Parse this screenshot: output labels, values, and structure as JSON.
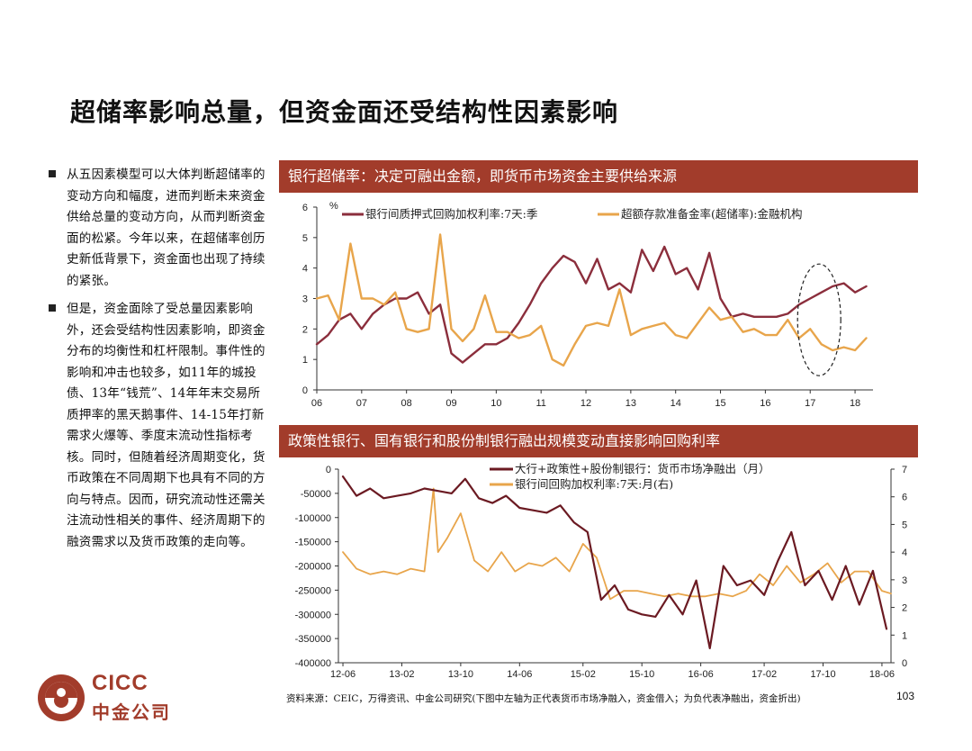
{
  "title": "超储率影响总量，但资金面还受结构性因素影响",
  "bullets": [
    "从五因素模型可以大体判断超储率的变动方向和幅度，进而判断未来资金供给总量的变动方向，从而判断资金面的松紧。今年以来，在超储率创历史新低背景下，资金面也出现了持续的紧张。",
    "但是，资金面除了受总量因素影响外，还会受结构性因素影响，即资金分布的均衡性和杠杆限制。事件性的影响和冲击也较多，如11年的城投债、13年“钱荒”、14年年末交易所质押率的黑天鹅事件、14-15年打新需求火爆等、季度末流动性指标考核。同时，但随着经济周期变化，货币政策在不同周期下也具有不同的方向与特点。因而，研究流动性还需关注流动性相关的事件、经济周期下的融资需求以及货币政策的走向等。"
  ],
  "banner1": "银行超储率：决定可融出金额，即货币市场资金主要供给来源",
  "banner2": "政策性银行、国有银行和股份制银行融出规模变动直接影响回购利率",
  "source": "资料来源：CEIC，万得资讯、中金公司研究(下图中左轴为正代表货币市场净融入，资金借入；为负代表净融出，资金折出)",
  "page_number": "103",
  "logo": {
    "en": "CICC",
    "cn": "中金公司"
  },
  "colors": {
    "brand": "#a23c2b",
    "dark_red": "#6b1a22",
    "orange": "#e8a54b"
  },
  "chart_data": [
    {
      "type": "line",
      "unit_label": "%",
      "ylim": [
        0,
        6
      ],
      "yticks": [
        0,
        1,
        2,
        3,
        4,
        5,
        6
      ],
      "xlim": [
        2006.0,
        2018.4
      ],
      "xticks": [
        "06",
        "07",
        "08",
        "09",
        "10",
        "11",
        "12",
        "13",
        "14",
        "15",
        "16",
        "17",
        "18"
      ],
      "annotation": "dashed-ellipse around 2017-2018",
      "series": [
        {
          "name": "银行间质押式回购加权利率:7天:季",
          "color": "#8b2e3c",
          "x": [
            2006.0,
            2006.25,
            2006.5,
            2006.75,
            2007.0,
            2007.25,
            2007.5,
            2007.75,
            2008.0,
            2008.25,
            2008.5,
            2008.75,
            2009.0,
            2009.25,
            2009.5,
            2009.75,
            2010.0,
            2010.25,
            2010.5,
            2010.75,
            2011.0,
            2011.25,
            2011.5,
            2011.75,
            2012.0,
            2012.25,
            2012.5,
            2012.75,
            2013.0,
            2013.25,
            2013.5,
            2013.75,
            2014.0,
            2014.25,
            2014.5,
            2014.75,
            2015.0,
            2015.25,
            2015.5,
            2015.75,
            2016.0,
            2016.25,
            2016.5,
            2016.75,
            2017.0,
            2017.25,
            2017.5,
            2017.75,
            2018.0,
            2018.25
          ],
          "values": [
            1.5,
            1.8,
            2.3,
            2.5,
            2.0,
            2.5,
            2.8,
            3.0,
            3.0,
            3.2,
            2.5,
            2.8,
            1.2,
            0.9,
            1.2,
            1.5,
            1.5,
            1.7,
            2.2,
            2.8,
            3.5,
            4.0,
            4.4,
            4.2,
            3.5,
            4.3,
            3.3,
            3.5,
            3.2,
            4.6,
            3.9,
            4.7,
            3.8,
            4.0,
            3.3,
            4.5,
            3.0,
            2.4,
            2.5,
            2.4,
            2.4,
            2.4,
            2.5,
            2.8,
            3.0,
            3.2,
            3.4,
            3.5,
            3.2,
            3.4
          ]
        },
        {
          "name": "超额存款准备金率(超储率):金融机构",
          "color": "#e8a54b",
          "x": [
            2006.0,
            2006.25,
            2006.5,
            2006.75,
            2007.0,
            2007.25,
            2007.5,
            2007.75,
            2008.0,
            2008.25,
            2008.5,
            2008.75,
            2009.0,
            2009.25,
            2009.5,
            2009.75,
            2010.0,
            2010.25,
            2010.5,
            2010.75,
            2011.0,
            2011.25,
            2011.5,
            2011.75,
            2012.0,
            2012.25,
            2012.5,
            2012.75,
            2013.0,
            2013.25,
            2013.5,
            2013.75,
            2014.0,
            2014.25,
            2014.5,
            2014.75,
            2015.0,
            2015.25,
            2015.5,
            2015.75,
            2016.0,
            2016.25,
            2016.5,
            2016.75,
            2017.0,
            2017.25,
            2017.5,
            2017.75,
            2018.0,
            2018.25
          ],
          "values": [
            3.0,
            3.1,
            2.3,
            4.8,
            3.0,
            3.0,
            2.8,
            3.2,
            2.0,
            1.9,
            2.0,
            5.1,
            2.0,
            1.6,
            2.0,
            3.1,
            1.9,
            1.9,
            1.7,
            1.8,
            2.1,
            1.0,
            0.8,
            1.5,
            2.1,
            2.2,
            2.1,
            3.3,
            1.8,
            2.0,
            2.1,
            2.2,
            1.8,
            1.7,
            2.2,
            2.7,
            2.3,
            2.4,
            1.9,
            2.0,
            1.8,
            1.8,
            2.3,
            1.7,
            2.0,
            1.5,
            1.3,
            1.4,
            1.3,
            1.7
          ]
        }
      ]
    },
    {
      "type": "line",
      "ylim_left": [
        -400000,
        0
      ],
      "yticks_left": [
        "0",
        "-50000",
        "-100000",
        "-150000",
        "-200000",
        "-250000",
        "-300000",
        "-350000",
        "-400000"
      ],
      "ylim_right": [
        0,
        7
      ],
      "yticks_right": [
        "7",
        "6",
        "5",
        "4",
        "3",
        "2",
        "1",
        "0"
      ],
      "xlim": [
        2012.4,
        2018.5
      ],
      "xticks": [
        "12-06",
        "13-02",
        "13-10",
        "14-06",
        "15-02",
        "15-10",
        "16-06",
        "17-02",
        "17-10",
        "18-06"
      ],
      "series": [
        {
          "name": "大行+政策性+股份制银行：货币市场净融出（月）",
          "axis": "left",
          "color": "#6b1a22",
          "x": [
            2012.45,
            2012.6,
            2012.75,
            2012.9,
            2013.05,
            2013.2,
            2013.35,
            2013.5,
            2013.65,
            2013.8,
            2013.95,
            2014.1,
            2014.25,
            2014.4,
            2014.55,
            2014.7,
            2014.85,
            2015.0,
            2015.15,
            2015.3,
            2015.45,
            2015.6,
            2015.75,
            2015.9,
            2016.05,
            2016.2,
            2016.35,
            2016.5,
            2016.65,
            2016.8,
            2016.95,
            2017.1,
            2017.25,
            2017.4,
            2017.55,
            2017.7,
            2017.85,
            2018.0,
            2018.15,
            2018.3,
            2018.45
          ],
          "values": [
            -15000,
            -55000,
            -40000,
            -60000,
            -55000,
            -50000,
            -40000,
            -45000,
            -50000,
            -20000,
            -60000,
            -70000,
            -55000,
            -80000,
            -85000,
            -90000,
            -75000,
            -110000,
            -130000,
            -270000,
            -240000,
            -290000,
            -300000,
            -305000,
            -260000,
            -300000,
            -230000,
            -370000,
            -200000,
            -240000,
            -230000,
            -260000,
            -190000,
            -130000,
            -240000,
            -210000,
            -270000,
            -200000,
            -280000,
            -210000,
            -330000
          ]
        },
        {
          "name": "银行间回购加权利率:7天:月(右)",
          "axis": "right",
          "color": "#e8a54b",
          "x": [
            2012.45,
            2012.6,
            2012.75,
            2012.9,
            2013.05,
            2013.2,
            2013.35,
            2013.45,
            2013.5,
            2013.6,
            2013.75,
            2013.9,
            2014.05,
            2014.2,
            2014.35,
            2014.5,
            2014.65,
            2014.8,
            2014.95,
            2015.1,
            2015.25,
            2015.4,
            2015.55,
            2015.7,
            2015.85,
            2016.0,
            2016.15,
            2016.3,
            2016.45,
            2016.6,
            2016.75,
            2016.9,
            2017.05,
            2017.2,
            2017.35,
            2017.5,
            2017.65,
            2017.8,
            2017.95,
            2018.1,
            2018.25,
            2018.4,
            2018.5
          ],
          "values": [
            4.0,
            3.4,
            3.2,
            3.3,
            3.2,
            3.4,
            3.3,
            6.3,
            4.0,
            4.5,
            5.4,
            3.7,
            3.3,
            4.0,
            3.3,
            3.6,
            3.5,
            3.8,
            3.3,
            4.3,
            3.8,
            2.3,
            2.6,
            2.6,
            2.5,
            2.4,
            2.5,
            2.4,
            2.4,
            2.5,
            2.4,
            2.6,
            3.2,
            2.8,
            3.5,
            2.9,
            3.2,
            3.6,
            2.9,
            3.3,
            3.3,
            2.6,
            2.5
          ]
        }
      ]
    }
  ]
}
